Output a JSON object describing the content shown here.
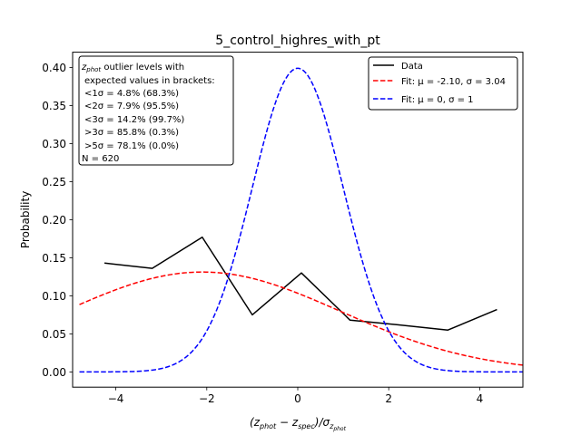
{
  "chart_data": {
    "type": "line",
    "title": "5_control_highres_with_pt",
    "xlabel": "(z_phot − z_spec)/σ_z_phot",
    "ylabel": "Probability",
    "xlim": [
      -4.95,
      4.95
    ],
    "ylim": [
      -0.02,
      0.42
    ],
    "xticks": [
      -4,
      -2,
      0,
      2,
      4
    ],
    "yticks": [
      0.0,
      0.05,
      0.1,
      0.15,
      0.2,
      0.25,
      0.3,
      0.35,
      0.4
    ],
    "ytick_labels": [
      "0.00",
      "0.05",
      "0.10",
      "0.15",
      "0.20",
      "0.25",
      "0.30",
      "0.35",
      "0.40"
    ],
    "xtick_labels": [
      "−4",
      "−2",
      "0",
      "2",
      "4"
    ],
    "legend_position": "top-right",
    "info_position": "top-left",
    "grid": false,
    "info_box": {
      "header": "z_phot outlier levels with",
      "line2": "expected values in brackets:",
      "lines": [
        "<1σ = 4.8% (68.3%)",
        "<2σ = 7.9% (95.5%)",
        "<3σ = 14.2% (99.7%)",
        ">3σ = 85.8% (0.3%)",
        ">5σ = 78.1% (0.0%)"
      ],
      "n": "N = 620"
    },
    "series": [
      {
        "name": "Data",
        "color": "#000000",
        "style": "solid",
        "x": [
          -4.25,
          -3.2,
          -2.1,
          -1.0,
          0.08,
          1.15,
          2.2,
          3.3,
          4.38
        ],
        "y": [
          0.143,
          0.136,
          0.177,
          0.075,
          0.13,
          0.068,
          0.062,
          0.055,
          0.082
        ]
      },
      {
        "name": "Fit: μ = -2.10, σ = 3.04",
        "color": "#ff0000",
        "style": "dashed",
        "function": "gaussian",
        "mu": -2.1,
        "sigma": 3.04,
        "x_range": [
          -4.8,
          4.95
        ]
      },
      {
        "name": "Fit: μ = 0, σ = 1",
        "color": "#0000ff",
        "style": "dashed",
        "function": "gaussian",
        "mu": 0,
        "sigma": 1,
        "x_range": [
          -4.8,
          4.95
        ]
      }
    ]
  }
}
